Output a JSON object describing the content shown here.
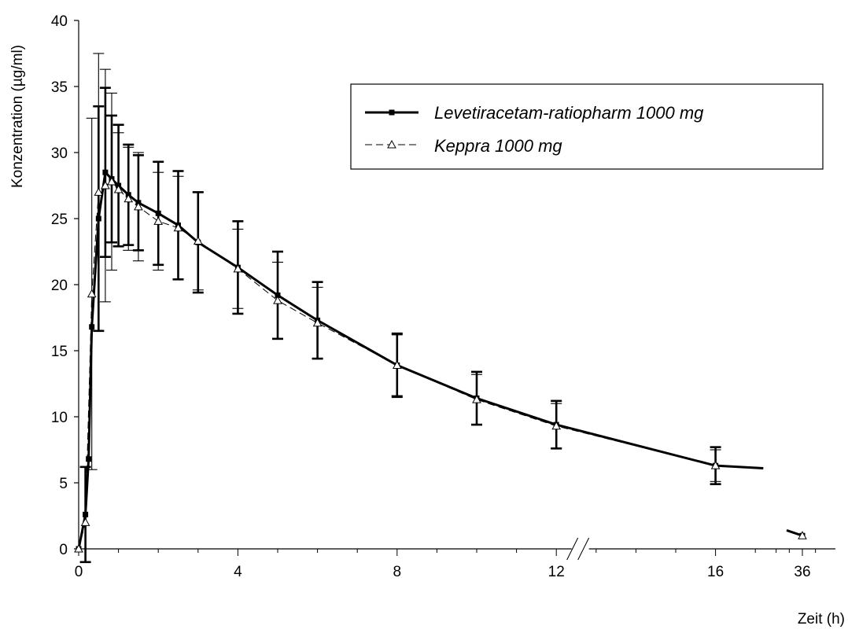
{
  "chart_data": {
    "type": "line",
    "title": "",
    "xlabel": "Zeit (h)",
    "ylabel": "Konzentration (µg/ml)",
    "ylim": [
      0,
      40
    ],
    "y_ticks": [
      0,
      5,
      10,
      15,
      20,
      25,
      30,
      35,
      40
    ],
    "x_tick_labels": [
      "0",
      "4",
      "8",
      "12",
      "16",
      "36"
    ],
    "x_axis_break": "between 16 and 36",
    "legend_position": "top-right",
    "grid": false,
    "series": [
      {
        "name": "Levetiracetam-ratiopharm 1000 mg",
        "line_style": "solid",
        "marker": "filled-square",
        "color": "#000000",
        "points": [
          {
            "x": 0,
            "y": 0,
            "sd": 0
          },
          {
            "x": 0.17,
            "y": 2.6,
            "sd": 3.6
          },
          {
            "x": 0.25,
            "y": 6.8,
            "sd": 0
          },
          {
            "x": 0.33,
            "y": 16.8,
            "sd": 0
          },
          {
            "x": 0.5,
            "y": 25,
            "sd": 8.5
          },
          {
            "x": 0.67,
            "y": 28.5,
            "sd": 6.4
          },
          {
            "x": 0.83,
            "y": 28,
            "sd": 4.8
          },
          {
            "x": 1.0,
            "y": 27.5,
            "sd": 4.6
          },
          {
            "x": 1.25,
            "y": 26.8,
            "sd": 3.8
          },
          {
            "x": 1.5,
            "y": 26.2,
            "sd": 3.6
          },
          {
            "x": 2,
            "y": 25.4,
            "sd": 3.9
          },
          {
            "x": 2.5,
            "y": 24.5,
            "sd": 4.1
          },
          {
            "x": 3,
            "y": 23.2,
            "sd": 3.8
          },
          {
            "x": 4,
            "y": 21.3,
            "sd": 3.5
          },
          {
            "x": 5,
            "y": 19.2,
            "sd": 3.3
          },
          {
            "x": 6,
            "y": 17.3,
            "sd": 2.9
          },
          {
            "x": 8,
            "y": 13.9,
            "sd": 2.4
          },
          {
            "x": 10,
            "y": 11.4,
            "sd": 2.0
          },
          {
            "x": 12,
            "y": 9.4,
            "sd": 1.8
          },
          {
            "x": 16,
            "y": 6.3,
            "sd": 1.4
          },
          {
            "x": 17.2,
            "y": 6.1,
            "sd": 0
          },
          {
            "x": 34.8,
            "y": 1.4,
            "sd": 0
          },
          {
            "x": 36,
            "y": 1.0,
            "sd": 0
          }
        ]
      },
      {
        "name": "Keppra 1000 mg",
        "line_style": "dashed",
        "marker": "open-triangle",
        "color": "#000000",
        "points": [
          {
            "x": 0,
            "y": 0,
            "sd": 0
          },
          {
            "x": 0.17,
            "y": 2.0,
            "sd": 0
          },
          {
            "x": 0.33,
            "y": 19.3,
            "sd": 13.3
          },
          {
            "x": 0.5,
            "y": 27.0,
            "sd": 10.5
          },
          {
            "x": 0.67,
            "y": 27.5,
            "sd": 8.8
          },
          {
            "x": 0.83,
            "y": 27.8,
            "sd": 6.7
          },
          {
            "x": 1.0,
            "y": 27.2,
            "sd": 4.3
          },
          {
            "x": 1.25,
            "y": 26.5,
            "sd": 3.9
          },
          {
            "x": 1.5,
            "y": 25.9,
            "sd": 4.1
          },
          {
            "x": 2,
            "y": 24.8,
            "sd": 3.7
          },
          {
            "x": 2.5,
            "y": 24.3,
            "sd": 3.9
          },
          {
            "x": 3,
            "y": 23.3,
            "sd": 3.7
          },
          {
            "x": 4,
            "y": 21.2,
            "sd": 3.0
          },
          {
            "x": 5,
            "y": 18.8,
            "sd": 2.9
          },
          {
            "x": 6,
            "y": 17.1,
            "sd": 2.7
          },
          {
            "x": 8,
            "y": 13.9,
            "sd": 2.3
          },
          {
            "x": 10,
            "y": 11.3,
            "sd": 1.9
          },
          {
            "x": 12,
            "y": 9.3,
            "sd": 1.7
          },
          {
            "x": 16,
            "y": 6.3,
            "sd": 1.2
          },
          {
            "x": 36,
            "y": 1.0,
            "sd": 0
          }
        ]
      }
    ]
  }
}
